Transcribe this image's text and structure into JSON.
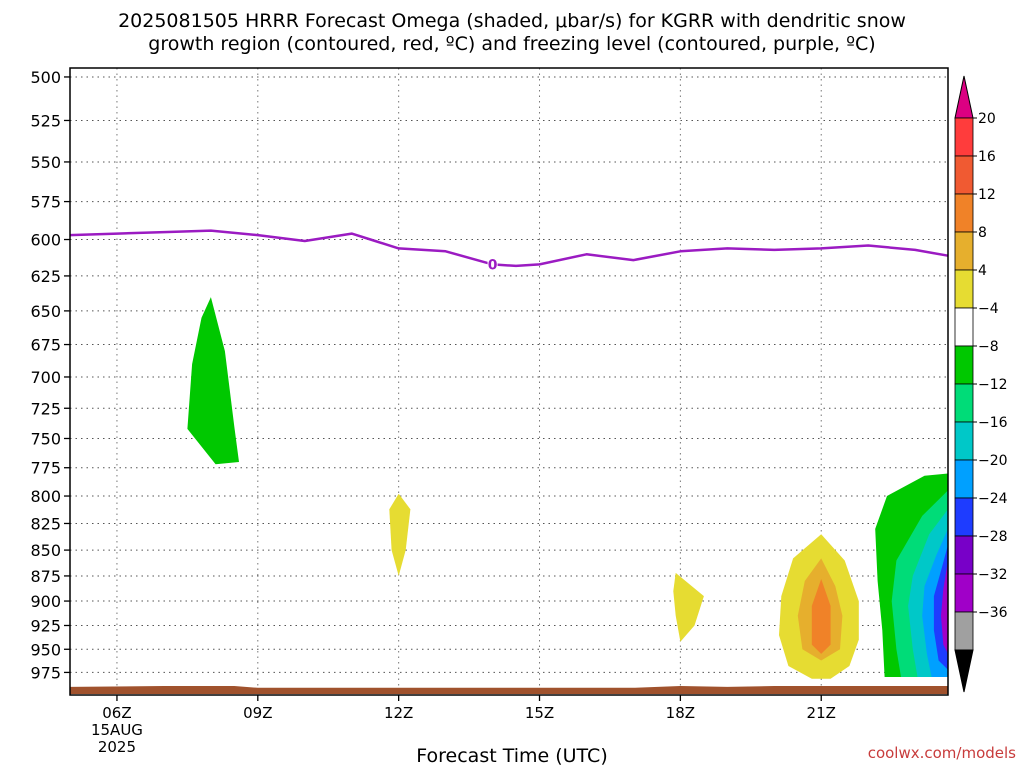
{
  "title_line1": "2025081505 HRRR Forecast Omega (shaded, μbar/s) for KGRR with dendritic snow",
  "title_line2": "growth region (contoured, red, ºC) and freezing level (contoured, purple, ºC)",
  "credit": "coolwx.com/models",
  "chart_data": {
    "type": "heatmap",
    "xlabel": "Forecast Time (UTC)",
    "ylabel": "",
    "x_unit": "hours UTC on 15AUG2025",
    "xlim": [
      5,
      23.7
    ],
    "ylim": [
      1000,
      495
    ],
    "y_scale": "log-pressure (hPa), inverted",
    "grid": true,
    "x_ticks": [
      {
        "hour": 6,
        "label": "06Z",
        "sub1": "15AUG",
        "sub2": "2025"
      },
      {
        "hour": 9,
        "label": "09Z"
      },
      {
        "hour": 12,
        "label": "12Z"
      },
      {
        "hour": 15,
        "label": "15Z"
      },
      {
        "hour": 18,
        "label": "18Z"
      },
      {
        "hour": 21,
        "label": "21Z"
      }
    ],
    "y_ticks": [
      500,
      525,
      550,
      575,
      600,
      625,
      650,
      675,
      700,
      725,
      750,
      775,
      800,
      825,
      850,
      875,
      900,
      925,
      950,
      975
    ],
    "freezing_level": {
      "label": "0",
      "label_at": [
        14.0,
        617
      ],
      "color": "#9b1bc2",
      "points": [
        [
          5,
          597
        ],
        [
          6,
          596
        ],
        [
          7,
          595
        ],
        [
          8,
          594
        ],
        [
          9,
          597
        ],
        [
          10,
          601
        ],
        [
          11,
          596
        ],
        [
          11.5,
          601
        ],
        [
          12,
          606
        ],
        [
          13,
          608
        ],
        [
          14,
          617
        ],
        [
          14.5,
          618
        ],
        [
          15,
          617
        ],
        [
          16,
          610
        ],
        [
          17,
          614
        ],
        [
          18,
          608
        ],
        [
          19,
          606
        ],
        [
          20,
          607
        ],
        [
          21,
          606
        ],
        [
          22,
          604
        ],
        [
          23,
          607
        ],
        [
          23.7,
          611
        ]
      ]
    },
    "omega_regions": [
      {
        "level": -8,
        "color": "#00c800",
        "points": [
          [
            8.0,
            640
          ],
          [
            8.3,
            680
          ],
          [
            8.5,
            740
          ],
          [
            8.6,
            770
          ],
          [
            8.1,
            772
          ],
          [
            7.5,
            742
          ],
          [
            7.6,
            690
          ],
          [
            7.8,
            655
          ]
        ]
      },
      {
        "level": 4,
        "color": "#e6dc32",
        "points": [
          [
            12.0,
            798
          ],
          [
            12.25,
            812
          ],
          [
            12.15,
            850
          ],
          [
            12.0,
            875
          ],
          [
            11.85,
            850
          ],
          [
            11.8,
            812
          ]
        ]
      },
      {
        "level": 4,
        "color": "#e6dc32",
        "points": [
          [
            17.9,
            872
          ],
          [
            18.5,
            895
          ],
          [
            18.3,
            925
          ],
          [
            18.0,
            942
          ],
          [
            17.9,
            915
          ],
          [
            17.85,
            890
          ]
        ]
      },
      {
        "level": 4,
        "color": "#e6dc32",
        "points": [
          [
            21.0,
            835
          ],
          [
            21.5,
            860
          ],
          [
            21.8,
            900
          ],
          [
            21.8,
            940
          ],
          [
            21.6,
            968
          ],
          [
            21.2,
            982
          ],
          [
            20.8,
            982
          ],
          [
            20.3,
            968
          ],
          [
            20.1,
            935
          ],
          [
            20.15,
            895
          ],
          [
            20.4,
            858
          ]
        ]
      },
      {
        "level": 8,
        "color": "#e6af2d",
        "points": [
          [
            21.0,
            858
          ],
          [
            21.3,
            885
          ],
          [
            21.45,
            915
          ],
          [
            21.4,
            950
          ],
          [
            21.0,
            962
          ],
          [
            20.6,
            950
          ],
          [
            20.5,
            915
          ],
          [
            20.65,
            880
          ]
        ]
      },
      {
        "level": 12,
        "color": "#f08228",
        "points": [
          [
            21.0,
            878
          ],
          [
            21.2,
            905
          ],
          [
            21.2,
            945
          ],
          [
            21.0,
            955
          ],
          [
            20.8,
            945
          ],
          [
            20.8,
            905
          ]
        ]
      },
      {
        "level": -4,
        "color": "#00c800",
        "points": [
          [
            23.7,
            780
          ],
          [
            23.2,
            782
          ],
          [
            22.4,
            800
          ],
          [
            22.15,
            830
          ],
          [
            22.2,
            880
          ],
          [
            22.3,
            930
          ],
          [
            22.35,
            980
          ],
          [
            23.7,
            980
          ]
        ]
      },
      {
        "level": -8,
        "color": "#00dc78",
        "points": [
          [
            23.7,
            795
          ],
          [
            23.15,
            818
          ],
          [
            22.6,
            860
          ],
          [
            22.5,
            900
          ],
          [
            22.6,
            950
          ],
          [
            22.7,
            980
          ],
          [
            23.7,
            980
          ]
        ]
      },
      {
        "level": -12,
        "color": "#00c8c8",
        "points": [
          [
            23.7,
            812
          ],
          [
            23.3,
            835
          ],
          [
            22.95,
            875
          ],
          [
            22.85,
            905
          ],
          [
            22.95,
            950
          ],
          [
            23.05,
            980
          ],
          [
            23.7,
            980
          ]
        ]
      },
      {
        "level": -16,
        "color": "#00a0ff",
        "points": [
          [
            23.7,
            830
          ],
          [
            23.45,
            855
          ],
          [
            23.2,
            885
          ],
          [
            23.15,
            915
          ],
          [
            23.25,
            955
          ],
          [
            23.35,
            980
          ],
          [
            23.7,
            980
          ]
        ]
      },
      {
        "level": -20,
        "color": "#1e3cff",
        "points": [
          [
            23.7,
            845
          ],
          [
            23.55,
            870
          ],
          [
            23.4,
            895
          ],
          [
            23.4,
            930
          ],
          [
            23.5,
            962
          ],
          [
            23.7,
            972
          ]
        ]
      },
      {
        "level": -24,
        "color": "#a000c8",
        "points": [
          [
            23.7,
            860
          ],
          [
            23.6,
            888
          ],
          [
            23.55,
            915
          ],
          [
            23.6,
            945
          ],
          [
            23.7,
            955
          ]
        ]
      }
    ],
    "terrain_color": "#a0522d",
    "terrain": [
      [
        5,
        991
      ],
      [
        7,
        990
      ],
      [
        8.5,
        990
      ],
      [
        9,
        992
      ],
      [
        12,
        992
      ],
      [
        15,
        992
      ],
      [
        17,
        992
      ],
      [
        18,
        990
      ],
      [
        19,
        991
      ],
      [
        20,
        990
      ],
      [
        22,
        990
      ],
      [
        23.7,
        990
      ]
    ],
    "colorbar": {
      "labels": [
        "20",
        "16",
        "12",
        "8",
        "4",
        "−4",
        "−8",
        "−12",
        "−16",
        "−20",
        "−24",
        "−28",
        "−32",
        "−36"
      ],
      "top_color": "#dc0082",
      "bottom_color": "#000000",
      "colors": [
        "#ff3c3c",
        "#f05a32",
        "#f08228",
        "#e6af2d",
        "#e6dc32",
        "#ffffff",
        "#00c800",
        "#00dc78",
        "#00c8c8",
        "#00a0ff",
        "#1e3cff",
        "#7800c8",
        "#a000c8",
        "#a0a0a0"
      ]
    }
  }
}
